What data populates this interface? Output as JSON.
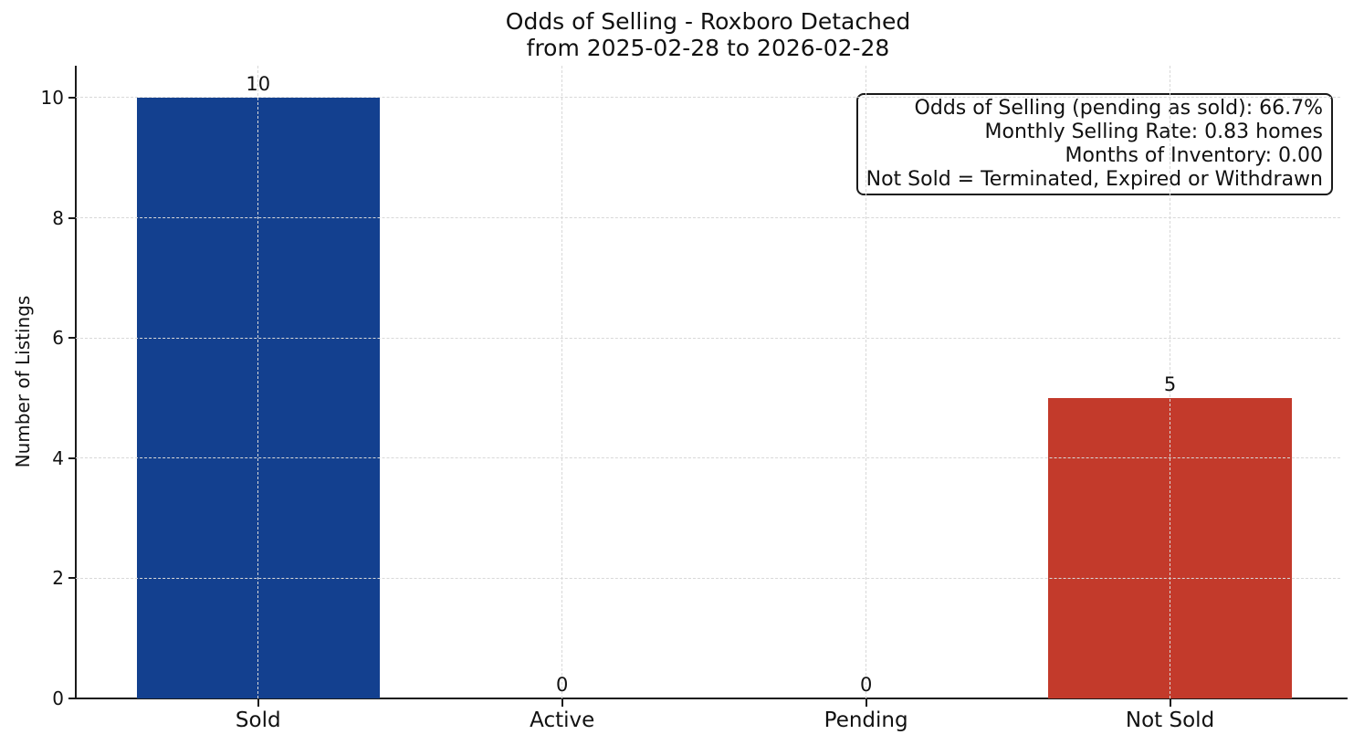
{
  "chart_data": {
    "type": "bar",
    "title": "Odds of Selling - Roxboro Detached\nfrom 2025-02-28 to 2026-02-28",
    "title_lines": [
      "Odds of Selling - Roxboro Detached",
      "from 2025-02-28 to 2026-02-28"
    ],
    "ylabel": "Number of Listings",
    "xlabel": "",
    "categories": [
      "Sold",
      "Active",
      "Pending",
      "Not Sold"
    ],
    "values": [
      10,
      0,
      0,
      5
    ],
    "bar_value_labels": [
      "10",
      "0",
      "0",
      "5"
    ],
    "bar_colors": [
      "#13408f",
      null,
      null,
      "#c33a2b"
    ],
    "ylim": [
      0,
      10.53
    ],
    "yticks": [
      0,
      2,
      4,
      6,
      8,
      10
    ],
    "bar_width_fraction": 0.8,
    "grid": {
      "horizontal": true,
      "vertical": true,
      "linestyle": "dashed",
      "color": "#d8d8d8"
    },
    "legend": null,
    "annotation": {
      "lines": [
        "Odds of Selling (pending as sold): 66.7%",
        "Monthly Selling Rate: 0.83 homes",
        "Months of Inventory: 0.00",
        "Not Sold = Terminated, Expired or Withdrawn"
      ]
    },
    "colors_meaning": {
      "sold_bar": "#13408f",
      "not_sold_bar": "#c33a2b"
    }
  }
}
